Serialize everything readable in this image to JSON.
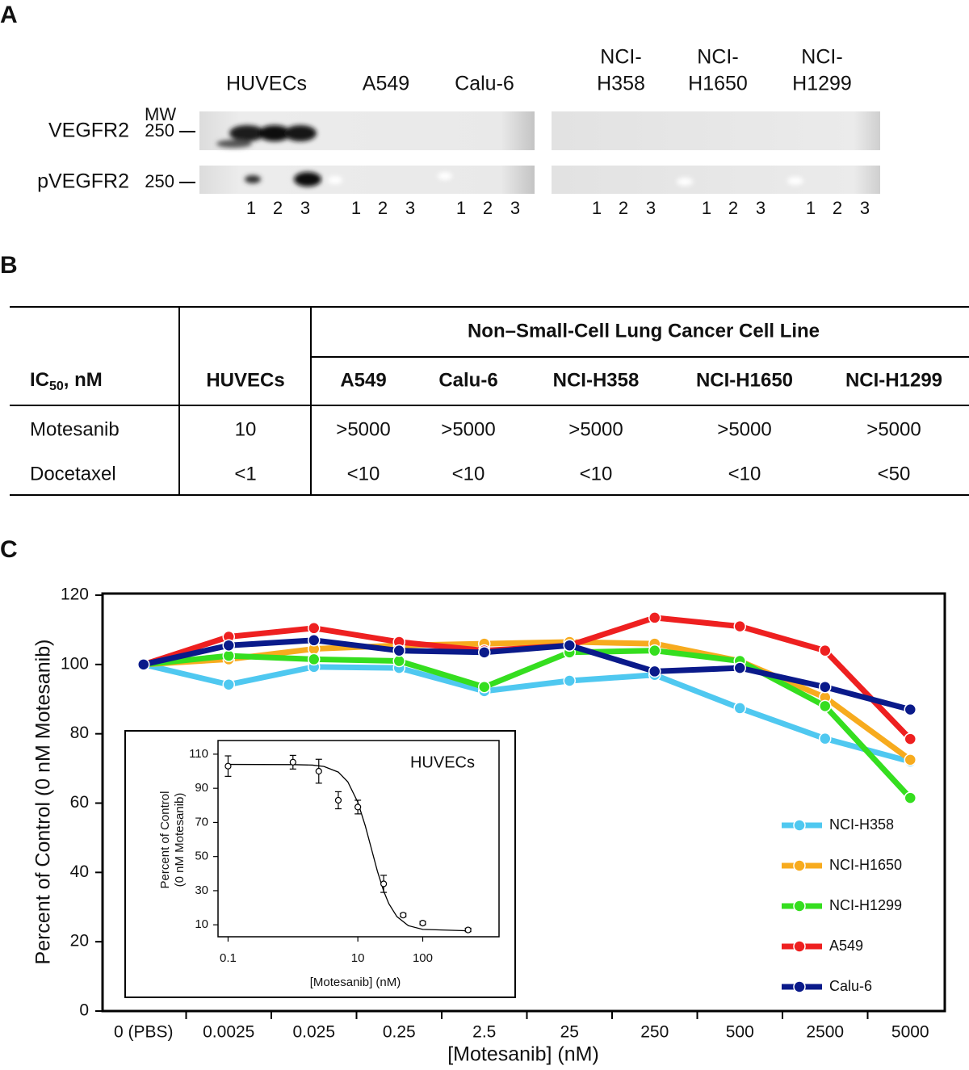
{
  "panel_labels": [
    "A",
    "B",
    "C"
  ],
  "blot": {
    "column_headers": [
      [
        "HUVECs"
      ],
      [
        "A549"
      ],
      [
        "Calu-6"
      ],
      [
        "NCI-",
        "H358"
      ],
      [
        "NCI-",
        "H1650"
      ],
      [
        "NCI-",
        "H1299"
      ]
    ],
    "row_labels": [
      "VEGFR2",
      "pVEGFR2"
    ],
    "mw_label": "MW",
    "mw_markers": [
      "250",
      "250"
    ],
    "lanes": [
      [
        "1",
        "2",
        "3"
      ],
      [
        "1",
        "2",
        "3"
      ],
      [
        "1",
        "2",
        "3"
      ],
      [
        "1",
        "2",
        "3"
      ],
      [
        "1",
        "2",
        "3"
      ],
      [
        "1",
        "2",
        "3"
      ]
    ]
  },
  "table": {
    "group_header": "Non–Small-Cell Lung Cancer Cell Line",
    "corner": [
      "IC",
      "50",
      ", nM"
    ],
    "columns": [
      "HUVECs",
      "A549",
      "Calu-6",
      "NCI-H358",
      "NCI-H1650",
      "NCI-H1299"
    ],
    "rows": [
      [
        "Motesanib",
        "10",
        ">5000",
        ">5000",
        ">5000",
        ">5000",
        ">5000"
      ],
      [
        "Docetaxel",
        "<1",
        "<10",
        "<10",
        "<10",
        "<10",
        "<50"
      ]
    ]
  },
  "chart_data": [
    {
      "type": "line",
      "y_label": "Percent of Control (0 nM Motesanib)",
      "x_label": "[Motesanib] (nM)",
      "categories": [
        "0 (PBS)",
        "0.0025",
        "0.025",
        "0.25",
        "2.5",
        "25",
        "250",
        "500",
        "2500",
        "5000"
      ],
      "ylim": [
        0,
        120
      ],
      "yticks": [
        0,
        20,
        40,
        60,
        80,
        100,
        120
      ],
      "legend": "lower right",
      "series": [
        {
          "name": "NCI-H358",
          "color": "#4fc8f0",
          "values": [
            100,
            94.2,
            99.3,
            99,
            92.3,
            95.3,
            97,
            87.4,
            78.6,
            72
          ]
        },
        {
          "name": "NCI-H1650",
          "color": "#f7ab1e",
          "values": [
            100,
            101.5,
            104.5,
            105.5,
            106,
            106.5,
            106,
            101,
            90.5,
            72.5
          ]
        },
        {
          "name": "NCI-H1299",
          "color": "#35de1f",
          "values": [
            100,
            102.5,
            101.5,
            101,
            93.5,
            103.5,
            104,
            101,
            88,
            61.5
          ]
        },
        {
          "name": "A549",
          "color": "#ee2020",
          "values": [
            100,
            108,
            110.5,
            106.5,
            104,
            105.5,
            113.5,
            111,
            104,
            78.5
          ]
        },
        {
          "name": "Calu-6",
          "color": "#0a1a8a",
          "values": [
            100,
            105.5,
            107,
            104,
            103.5,
            105.5,
            98,
            99,
            93.5,
            87
          ]
        }
      ]
    },
    {
      "type": "scatter",
      "title": "HUVECs",
      "y_label": [
        "Percent of Control",
        "(0 nM Motesanib)"
      ],
      "x_label": "[Motesanib] (nM)",
      "x_scale": "log",
      "xlim": [
        0.07,
        1500
      ],
      "xticks": [
        0.1,
        10,
        100
      ],
      "ylim": [
        3,
        118
      ],
      "yticks": [
        10,
        30,
        50,
        70,
        90,
        110
      ],
      "color": "#000000",
      "x": [
        0.1,
        1,
        2.5,
        5,
        10,
        25,
        50,
        100,
        500
      ],
      "values": [
        103,
        105.3,
        100,
        83,
        79,
        34,
        15.7,
        11,
        7
      ],
      "errors": [
        6,
        4,
        7,
        5,
        4,
        5,
        1,
        1,
        1
      ],
      "fit": {
        "x": [
          0.1,
          1,
          2,
          3,
          5,
          7,
          10,
          13,
          16,
          20,
          25,
          30,
          40,
          60,
          100,
          500
        ],
        "values": [
          104,
          103.9,
          103.6,
          102.8,
          99.5,
          93.8,
          81.8,
          68.1,
          55.3,
          41.5,
          29.8,
          22.4,
          14.8,
          9.5,
          7.3,
          6.5
        ]
      }
    }
  ]
}
